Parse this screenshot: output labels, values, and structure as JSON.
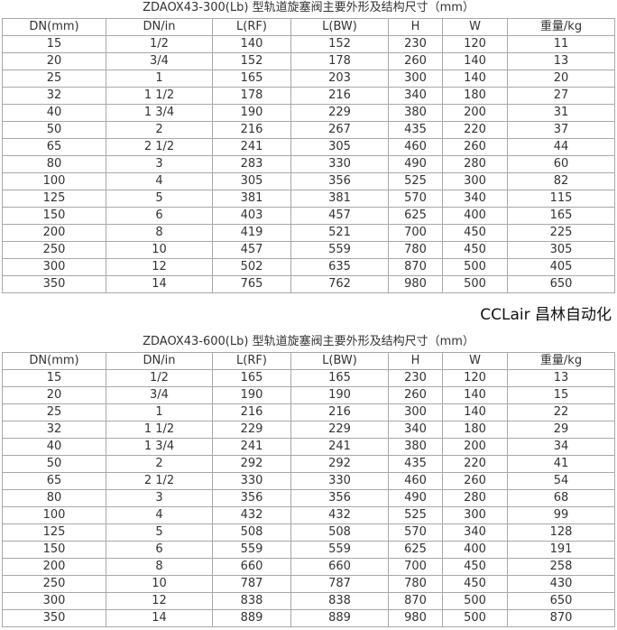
{
  "tables": [
    {
      "title": "ZDAOX43-300(Lb) 型轨道旋塞阀主要外形及结构尺寸（mm）",
      "headers": [
        "DN(mm)",
        "DN/in",
        "L(RF)",
        "L(BW)",
        "H",
        "W",
        "重量/kg"
      ],
      "rows": [
        [
          "15",
          "1/2",
          "140",
          "152",
          "230",
          "120",
          "11"
        ],
        [
          "20",
          "3/4",
          "152",
          "178",
          "260",
          "140",
          "13"
        ],
        [
          "25",
          "1",
          "165",
          "203",
          "300",
          "140",
          "20"
        ],
        [
          "32",
          "1 1/2",
          "178",
          "216",
          "340",
          "180",
          "27"
        ],
        [
          "40",
          "1 3/4",
          "190",
          "229",
          "380",
          "200",
          "31"
        ],
        [
          "50",
          "2",
          "216",
          "267",
          "435",
          "220",
          "37"
        ],
        [
          "65",
          "2 1/2",
          "241",
          "305",
          "460",
          "260",
          "44"
        ],
        [
          "80",
          "3",
          "283",
          "330",
          "490",
          "280",
          "60"
        ],
        [
          "100",
          "4",
          "305",
          "356",
          "525",
          "300",
          "82"
        ],
        [
          "125",
          "5",
          "381",
          "381",
          "570",
          "340",
          "115"
        ],
        [
          "150",
          "6",
          "403",
          "457",
          "625",
          "400",
          "165"
        ],
        [
          "200",
          "8",
          "419",
          "521",
          "700",
          "450",
          "225"
        ],
        [
          "250",
          "10",
          "457",
          "559",
          "780",
          "450",
          "305"
        ],
        [
          "300",
          "12",
          "502",
          "635",
          "870",
          "500",
          "405"
        ],
        [
          "350",
          "14",
          "765",
          "762",
          "980",
          "500",
          "650"
        ]
      ]
    },
    {
      "title": "ZDAOX43-600(Lb) 型轨道旋塞阀主要外形及结构尺寸（mm）",
      "headers": [
        "DN(mm)",
        "DN/in",
        "L(RF)",
        "L(BW)",
        "H",
        "W",
        "重量/kg"
      ],
      "rows": [
        [
          "15",
          "1/2",
          "165",
          "165",
          "230",
          "120",
          "13"
        ],
        [
          "20",
          "3/4",
          "190",
          "190",
          "260",
          "140",
          "15"
        ],
        [
          "25",
          "1",
          "216",
          "216",
          "300",
          "140",
          "22"
        ],
        [
          "32",
          "1 1/2",
          "229",
          "229",
          "340",
          "180",
          "29"
        ],
        [
          "40",
          "1 3/4",
          "241",
          "241",
          "380",
          "200",
          "34"
        ],
        [
          "50",
          "2",
          "292",
          "292",
          "435",
          "220",
          "41"
        ],
        [
          "65",
          "2 1/2",
          "330",
          "330",
          "460",
          "260",
          "54"
        ],
        [
          "80",
          "3",
          "356",
          "356",
          "490",
          "280",
          "68"
        ],
        [
          "100",
          "4",
          "432",
          "432",
          "525",
          "300",
          "99"
        ],
        [
          "125",
          "5",
          "508",
          "508",
          "570",
          "340",
          "128"
        ],
        [
          "150",
          "6",
          "559",
          "559",
          "625",
          "400",
          "191"
        ],
        [
          "200",
          "8",
          "660",
          "660",
          "700",
          "450",
          "258"
        ],
        [
          "250",
          "10",
          "787",
          "787",
          "780",
          "450",
          "430"
        ],
        [
          "300",
          "12",
          "838",
          "838",
          "870",
          "500",
          "650"
        ],
        [
          "350",
          "14",
          "889",
          "889",
          "980",
          "500",
          "870"
        ]
      ]
    }
  ],
  "watermark": "CCLair 昌林自动化"
}
